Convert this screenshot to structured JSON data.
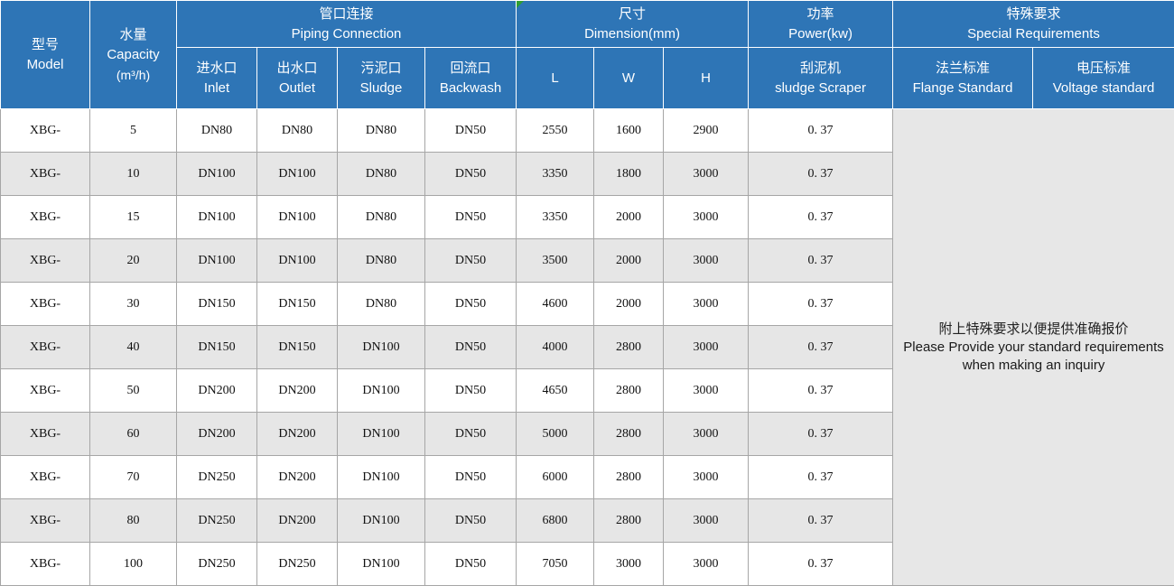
{
  "colors": {
    "header_bg": "#2e75b6",
    "header_text": "#ffffff",
    "row_alt_bg": "#e6e6e6",
    "note_bg": "#e7e7e7",
    "grid_border": "#a6a6a6",
    "comment_marker_green": "#2f9e31"
  },
  "table": {
    "header": {
      "model": {
        "zh": "型号",
        "en": "Model"
      },
      "capacity": {
        "zh": "水量",
        "en": "Capacity",
        "unit": "(m³/h)"
      },
      "piping": {
        "zh": "管口连接",
        "en": "Piping Connection"
      },
      "dimension": {
        "zh": "尺寸",
        "en": "Dimension(mm)"
      },
      "power": {
        "zh": "功率",
        "en": "Power(kw)"
      },
      "special": {
        "zh": "特殊要求",
        "en": "Special Requirements"
      },
      "inlet": {
        "zh": "进水口",
        "en": "Inlet"
      },
      "outlet": {
        "zh": "出水口",
        "en": "Outlet"
      },
      "sludge": {
        "zh": "污泥口",
        "en": "Sludge"
      },
      "backwash": {
        "zh": "回流口",
        "en": "Backwash"
      },
      "dim_l": "L",
      "dim_w": "W",
      "dim_h": "H",
      "scraper": {
        "zh": "刮泥机",
        "en": "sludge Scraper"
      },
      "flange": {
        "zh": "法兰标准",
        "en": "Flange Standard"
      },
      "voltage": {
        "zh": "电压标准",
        "en": "Voltage standard"
      }
    },
    "columns": [
      "model",
      "capacity",
      "inlet",
      "outlet",
      "sludge",
      "backwash",
      "L",
      "W",
      "H",
      "scraper"
    ],
    "rows": [
      {
        "model": "XBG-",
        "capacity": "5",
        "inlet": "DN80",
        "outlet": "DN80",
        "sludge": "DN80",
        "backwash": "DN50",
        "L": "2550",
        "W": "1600",
        "H": "2900",
        "scraper": "0. 37"
      },
      {
        "model": "XBG-",
        "capacity": "10",
        "inlet": "DN100",
        "outlet": "DN100",
        "sludge": "DN80",
        "backwash": "DN50",
        "L": "3350",
        "W": "1800",
        "H": "3000",
        "scraper": "0. 37"
      },
      {
        "model": "XBG-",
        "capacity": "15",
        "inlet": "DN100",
        "outlet": "DN100",
        "sludge": "DN80",
        "backwash": "DN50",
        "L": "3350",
        "W": "2000",
        "H": "3000",
        "scraper": "0. 37"
      },
      {
        "model": "XBG-",
        "capacity": "20",
        "inlet": "DN100",
        "outlet": "DN100",
        "sludge": "DN80",
        "backwash": "DN50",
        "L": "3500",
        "W": "2000",
        "H": "3000",
        "scraper": "0. 37"
      },
      {
        "model": "XBG-",
        "capacity": "30",
        "inlet": "DN150",
        "outlet": "DN150",
        "sludge": "DN80",
        "backwash": "DN50",
        "L": "4600",
        "W": "2000",
        "H": "3000",
        "scraper": "0. 37"
      },
      {
        "model": "XBG-",
        "capacity": "40",
        "inlet": "DN150",
        "outlet": "DN150",
        "sludge": "DN100",
        "backwash": "DN50",
        "L": "4000",
        "W": "2800",
        "H": "3000",
        "scraper": "0. 37"
      },
      {
        "model": "XBG-",
        "capacity": "50",
        "inlet": "DN200",
        "outlet": "DN200",
        "sludge": "DN100",
        "backwash": "DN50",
        "L": "4650",
        "W": "2800",
        "H": "3000",
        "scraper": "0. 37"
      },
      {
        "model": "XBG-",
        "capacity": "60",
        "inlet": "DN200",
        "outlet": "DN200",
        "sludge": "DN100",
        "backwash": "DN50",
        "L": "5000",
        "W": "2800",
        "H": "3000",
        "scraper": "0. 37"
      },
      {
        "model": "XBG-",
        "capacity": "70",
        "inlet": "DN250",
        "outlet": "DN200",
        "sludge": "DN100",
        "backwash": "DN50",
        "L": "6000",
        "W": "2800",
        "H": "3000",
        "scraper": "0. 37"
      },
      {
        "model": "XBG-",
        "capacity": "80",
        "inlet": "DN250",
        "outlet": "DN200",
        "sludge": "DN100",
        "backwash": "DN50",
        "L": "6800",
        "W": "2800",
        "H": "3000",
        "scraper": "0. 37"
      },
      {
        "model": "XBG-",
        "capacity": "100",
        "inlet": "DN250",
        "outlet": "DN250",
        "sludge": "DN100",
        "backwash": "DN50",
        "L": "7050",
        "W": "3000",
        "H": "3000",
        "scraper": "0. 37"
      }
    ],
    "special_note": {
      "zh": "附上特殊要求以便提供准确报价",
      "en_line1": "Please Provide your standard requirements",
      "en_line2": "when making an inquiry"
    }
  }
}
